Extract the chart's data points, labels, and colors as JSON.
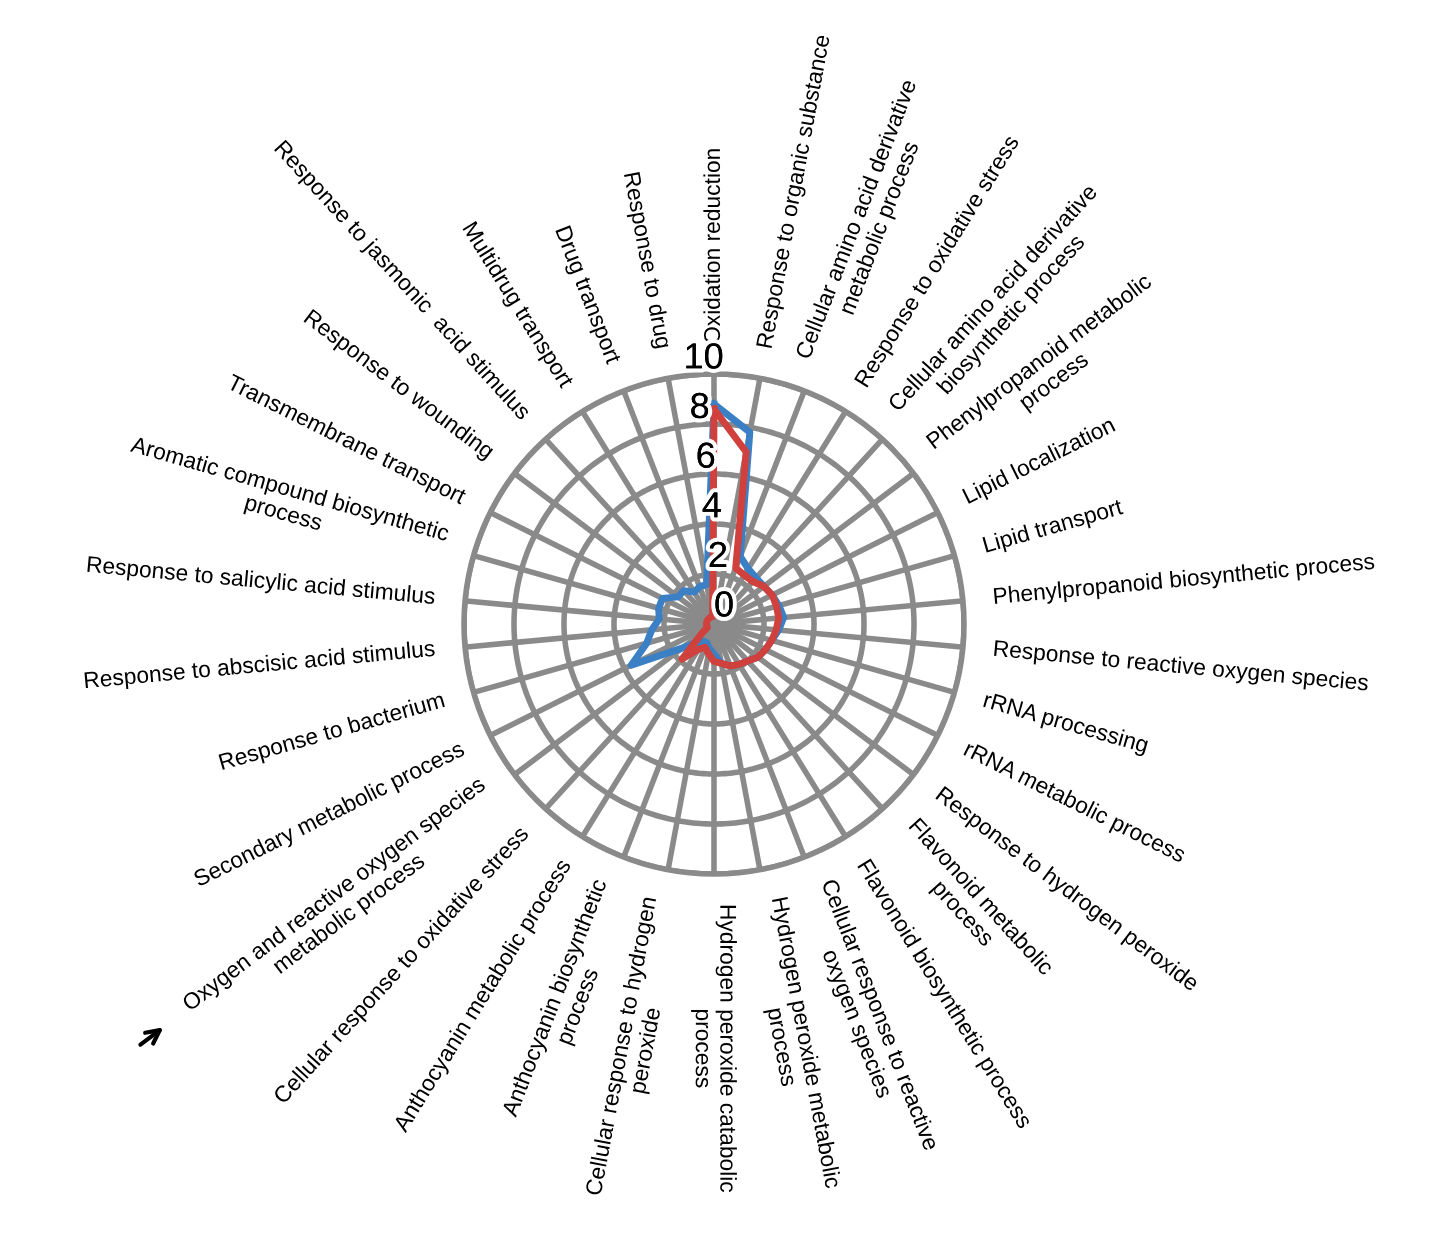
{
  "chart_data": {
    "type": "radar",
    "categories": [
      "Oxidation reduction",
      "Response to organic substance",
      "Cellular amino acid derivative\nmetabolic process",
      "Response to oxidative stress",
      "Cellular amino acid derivative\nbiosynthetic process",
      "Phenylpropanoid metabolic\nprocess",
      "Lipid localization",
      "Lipid transport",
      "Phenylpropanoid biosynthetic process",
      "Response to reactive oxygen species",
      "rRNA processing",
      "rRNA metabolic process",
      "Response to hydrogen peroxide",
      "Flavonoid metabolic\nprocess",
      "Flavonoid biosynthetic process",
      "Cellular response to reactive\noxygen species",
      "Hydrogen peroxide metabolic\nprocess",
      "Hydrogen peroxide catabolic\nprocess",
      "Cellular response to hydrogen\nperoxide",
      "Anthocyanin biosynthetic\nprocess",
      "Anthocyanin metabolic process",
      "Cellular response to oxidative stress",
      "Oxygen and reactive oxygen species\nmetabolic process",
      "Secondary metabolic process",
      "Response to bacterium",
      "Response to abscisic acid stimulus",
      "Response to salicylic acid stimulus",
      "Aromatic compound biosynthetic\nprocess",
      "Transmembrane transport",
      "Response to wounding",
      "Response to jasmonic  acid stimulus",
      "Multidrug transport",
      "Drug transport",
      "Response to drug"
    ],
    "series": [
      {
        "color": "#3b7fc4",
        "values": [
          8.8,
          7.8,
          2.9,
          2.6,
          2.5,
          2.5,
          2.6,
          2.7,
          2.8,
          2.6,
          2.4,
          2.3,
          2.2,
          2.0,
          1.9,
          1.8,
          1.6,
          1.2,
          1.0,
          0.8,
          0.8,
          1.0,
          1.6,
          3.7,
          2.8,
          2.5,
          2.2,
          2.3,
          2.3,
          1.8,
          1.8,
          1.5,
          1.6,
          1.6
        ]
      },
      {
        "color": "#d0403c",
        "values": [
          8.6,
          7.0,
          2.4,
          2.3,
          2.3,
          2.5,
          2.6,
          2.6,
          2.6,
          2.5,
          2.4,
          2.3,
          2.2,
          2.0,
          1.9,
          1.8,
          1.6,
          1.5,
          1.2,
          1.0,
          1.2,
          1.9,
          0.6,
          0.3,
          0.3,
          0.3,
          0.3,
          0.3,
          0.3,
          0.3,
          0.3,
          0.3,
          0.3,
          0.3
        ]
      }
    ],
    "ylim": [
      0,
      10
    ],
    "yticks": [
      0,
      2,
      4,
      6,
      8,
      10
    ],
    "grid": true
  }
}
